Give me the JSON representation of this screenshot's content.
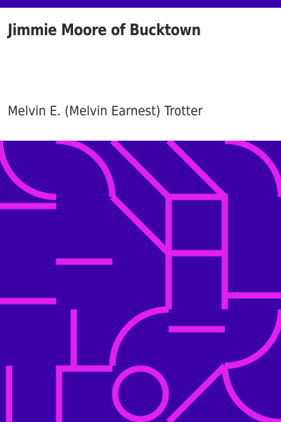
{
  "book": {
    "title": "Jimmie Moore of Bucktown",
    "author": "Melvin E. (Melvin Earnest) Trotter"
  },
  "colors": {
    "band": "#3a00a6",
    "pattern_background": "#3b00a8",
    "pattern_stroke": "#e11ff0",
    "text": "#2d2d2d"
  }
}
